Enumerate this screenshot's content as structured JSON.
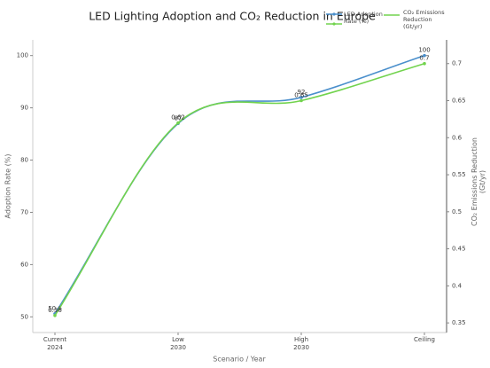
{
  "chart_data": {
    "type": "line",
    "title": "LED Lighting Adoption and CO₂ Reduction in Europe",
    "x_label": "Scenario / Year",
    "y_label": "Adoption Rate (%)",
    "y2_label": "CO₂ Emissions Reduction (Gt/yr)",
    "categories": [
      "Current\n2024",
      "Low\n2030",
      "High\n2030",
      "Ceiling"
    ],
    "ylim": [
      47,
      103
    ],
    "yticks": [
      50,
      60,
      70,
      80,
      90,
      100
    ],
    "y2lim": [
      0.337,
      0.732
    ],
    "y2ticks": [
      0.35,
      0.4,
      0.45,
      0.5,
      0.55,
      0.6,
      0.65,
      0.7
    ],
    "legend": "upper right",
    "series": [
      {
        "name": "LED Adoption Rate (%)",
        "color": "#4a8fcc",
        "values": [
          50.6,
          87,
          92,
          100
        ]
      },
      {
        "name": "CO₂ Emissions Reduction (Gt/yr)",
        "color": "#72d34e",
        "axis": "y2",
        "values": [
          0.36,
          0.62,
          0.65,
          0.7
        ]
      }
    ]
  }
}
